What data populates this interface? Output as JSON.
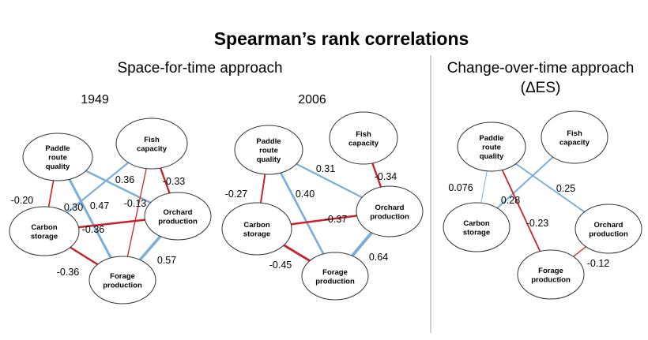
{
  "title": "Spearman’s rank correlations",
  "headings": {
    "space_for_time": "Space-for-time approach",
    "change_over_time_line1": "Change-over-time approach",
    "change_over_time_line2": "(ΔES)"
  },
  "colors": {
    "positive": "#7aaedb",
    "negative": "#c8232c",
    "divider": "#a6a6a6"
  },
  "node_names": {
    "paddle": [
      "Paddle",
      "route",
      "quality"
    ],
    "fish": [
      "Fish",
      "capacity"
    ],
    "carbon": [
      "Carbon",
      "storage"
    ],
    "orchard": [
      "Orchard",
      "production"
    ],
    "forage": [
      "Forage",
      "production"
    ]
  },
  "panels": [
    {
      "id": "1949",
      "label": "1949",
      "edges": [
        {
          "from": "paddle",
          "to": "carbon",
          "label": "-0.20",
          "value": -0.2
        },
        {
          "from": "paddle",
          "to": "orchard",
          "label": "0.36",
          "value": 0.36
        },
        {
          "from": "paddle",
          "to": "forage",
          "label": "0.47",
          "value": 0.47
        },
        {
          "from": "fish",
          "to": "carbon",
          "label": "0.30",
          "value": 0.3
        },
        {
          "from": "fish",
          "to": "forage",
          "label": "-0.13",
          "value": -0.13
        },
        {
          "from": "fish",
          "to": "orchard",
          "label": "-0.33",
          "value": -0.33
        },
        {
          "from": "carbon",
          "to": "orchard",
          "label": "-0.36",
          "value": -0.36
        },
        {
          "from": "carbon",
          "to": "forage",
          "label": "-0.36",
          "value": -0.36
        },
        {
          "from": "orchard",
          "to": "forage",
          "label": "0.57",
          "value": 0.57
        }
      ]
    },
    {
      "id": "2006",
      "label": "2006",
      "edges": [
        {
          "from": "paddle",
          "to": "carbon",
          "label": "-0.27",
          "value": -0.27
        },
        {
          "from": "paddle",
          "to": "orchard",
          "label": "0.31",
          "value": 0.31
        },
        {
          "from": "paddle",
          "to": "forage",
          "label": "0.40",
          "value": 0.4
        },
        {
          "from": "fish",
          "to": "orchard",
          "label": "-0.34",
          "value": -0.34
        },
        {
          "from": "carbon",
          "to": "orchard",
          "label": "-0.37",
          "value": -0.37
        },
        {
          "from": "carbon",
          "to": "forage",
          "label": "-0.45",
          "value": -0.45
        },
        {
          "from": "orchard",
          "to": "forage",
          "label": "0.64",
          "value": 0.64
        }
      ]
    },
    {
      "id": "des",
      "label": "",
      "edges": [
        {
          "from": "paddle",
          "to": "carbon",
          "label": "0.076",
          "value": 0.076
        },
        {
          "from": "fish",
          "to": "carbon",
          "label": "0.28",
          "value": 0.28
        },
        {
          "from": "paddle",
          "to": "orchard",
          "label": "0.25",
          "value": 0.25
        },
        {
          "from": "paddle",
          "to": "forage",
          "label": "-0.23",
          "value": -0.23
        },
        {
          "from": "orchard",
          "to": "forage",
          "label": "-0.12",
          "value": -0.12
        }
      ]
    }
  ]
}
